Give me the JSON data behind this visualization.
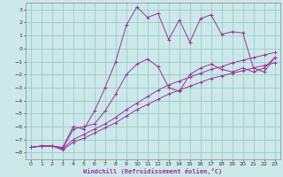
{
  "xlabel": "Windchill (Refroidissement éolien,°C)",
  "bg_color": "#cce8e8",
  "grid_color": "#99cccc",
  "line_color": "#993399",
  "xlim": [
    -0.5,
    23.5
  ],
  "ylim": [
    -8.5,
    3.5
  ],
  "xticks": [
    0,
    1,
    2,
    3,
    4,
    5,
    6,
    7,
    8,
    9,
    10,
    11,
    12,
    13,
    14,
    15,
    16,
    17,
    18,
    19,
    20,
    21,
    22,
    23
  ],
  "yticks": [
    -8,
    -7,
    -6,
    -5,
    -4,
    -3,
    -2,
    -1,
    0,
    1,
    2,
    3
  ],
  "series1_x": [
    0,
    1,
    2,
    3,
    4,
    5,
    6,
    7,
    8,
    9,
    10,
    11,
    12,
    13,
    14,
    15,
    16,
    17,
    18,
    19,
    20,
    21,
    22,
    23
  ],
  "series1_y": [
    -7.6,
    -7.5,
    -7.5,
    -7.6,
    -6.0,
    -6.2,
    -4.8,
    -3.0,
    -1.0,
    1.8,
    3.2,
    2.4,
    2.7,
    0.7,
    2.2,
    0.5,
    2.3,
    2.6,
    1.1,
    1.3,
    1.2,
    -1.5,
    -1.8,
    -0.7
  ],
  "series2_x": [
    0,
    1,
    2,
    3,
    4,
    5,
    6,
    7,
    8,
    9,
    10,
    11,
    12,
    13,
    14,
    15,
    16,
    17,
    18,
    19,
    20,
    21,
    22,
    23
  ],
  "series2_y": [
    -7.6,
    -7.5,
    -7.5,
    -7.7,
    -6.2,
    -6.0,
    -5.8,
    -4.8,
    -3.5,
    -2.0,
    -1.2,
    -0.8,
    -1.4,
    -3.0,
    -3.3,
    -2.0,
    -1.5,
    -1.2,
    -1.6,
    -1.8,
    -1.5,
    -1.8,
    -1.5,
    -0.7
  ],
  "series3_x": [
    0,
    1,
    2,
    3,
    4,
    5,
    6,
    7,
    8,
    9,
    10,
    11,
    12,
    13,
    14,
    15,
    16,
    17,
    18,
    19,
    20,
    21,
    22,
    23
  ],
  "series3_y": [
    -7.6,
    -7.5,
    -7.5,
    -7.7,
    -7.0,
    -6.6,
    -6.2,
    -5.8,
    -5.3,
    -4.7,
    -4.2,
    -3.7,
    -3.2,
    -2.8,
    -2.5,
    -2.2,
    -1.9,
    -1.6,
    -1.4,
    -1.1,
    -0.9,
    -0.7,
    -0.5,
    -0.3
  ],
  "series4_x": [
    0,
    1,
    2,
    3,
    4,
    5,
    6,
    7,
    8,
    9,
    10,
    11,
    12,
    13,
    14,
    15,
    16,
    17,
    18,
    19,
    20,
    21,
    22,
    23
  ],
  "series4_y": [
    -7.6,
    -7.5,
    -7.5,
    -7.8,
    -7.2,
    -6.9,
    -6.5,
    -6.1,
    -5.7,
    -5.2,
    -4.7,
    -4.3,
    -3.9,
    -3.5,
    -3.2,
    -2.9,
    -2.6,
    -2.3,
    -2.1,
    -1.9,
    -1.7,
    -1.5,
    -1.3,
    -1.1
  ]
}
